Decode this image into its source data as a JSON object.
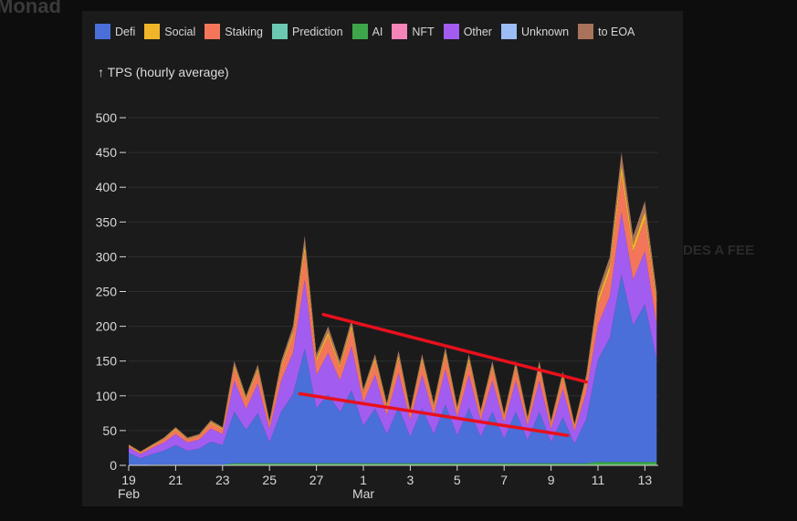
{
  "background": {
    "title": "Monad",
    "right_text": "DES A FEE"
  },
  "chart_data": {
    "type": "area",
    "stacked": true,
    "ylabel": "↑ TPS (hourly average)",
    "ylim": [
      0,
      500
    ],
    "yticks": [
      0,
      50,
      100,
      150,
      200,
      250,
      300,
      350,
      400,
      450,
      500
    ],
    "grid": "horizontal",
    "legend_position": "top",
    "xticks": [
      {
        "label": "19",
        "sub": "Feb",
        "date": "Feb 19"
      },
      {
        "label": "21",
        "date": "Feb 21"
      },
      {
        "label": "23",
        "date": "Feb 23"
      },
      {
        "label": "25",
        "date": "Feb 25"
      },
      {
        "label": "27",
        "date": "Feb 27"
      },
      {
        "label": "1",
        "sub": "Mar",
        "date": "Mar 1"
      },
      {
        "label": "3",
        "date": "Mar 3"
      },
      {
        "label": "5",
        "date": "Mar 5"
      },
      {
        "label": "7",
        "date": "Mar 7"
      },
      {
        "label": "9",
        "date": "Mar 9"
      },
      {
        "label": "11",
        "date": "Mar 11"
      },
      {
        "label": "13",
        "date": "Mar 13"
      }
    ],
    "legend": [
      {
        "name": "Defi",
        "color": "#4a6fd8"
      },
      {
        "name": "Social",
        "color": "#f0b429"
      },
      {
        "name": "Staking",
        "color": "#f4765a"
      },
      {
        "name": "Prediction",
        "color": "#6cc8b0"
      },
      {
        "name": "AI",
        "color": "#3da64a"
      },
      {
        "name": "NFT",
        "color": "#f784b8"
      },
      {
        "name": "Other",
        "color": "#a35cf0"
      },
      {
        "name": "Unknown",
        "color": "#9bbcf5"
      },
      {
        "name": "to EOA",
        "color": "#a8735a"
      }
    ],
    "x": [
      "Feb 19 00:00",
      "Feb 19 12:00",
      "Feb 20 00:00",
      "Feb 20 12:00",
      "Feb 21 00:00",
      "Feb 21 12:00",
      "Feb 22 00:00",
      "Feb 22 12:00",
      "Feb 23 00:00",
      "Feb 23 12:00",
      "Feb 24 00:00",
      "Feb 24 12:00",
      "Feb 25 00:00",
      "Feb 25 12:00",
      "Feb 26 00:00",
      "Feb 26 12:00",
      "Feb 27 00:00",
      "Feb 27 12:00",
      "Feb 28 00:00",
      "Feb 28 12:00",
      "Mar 1 00:00",
      "Mar 1 12:00",
      "Mar 2 00:00",
      "Mar 2 12:00",
      "Mar 3 00:00",
      "Mar 3 12:00",
      "Mar 4 00:00",
      "Mar 4 12:00",
      "Mar 5 00:00",
      "Mar 5 12:00",
      "Mar 6 00:00",
      "Mar 6 12:00",
      "Mar 7 00:00",
      "Mar 7 12:00",
      "Mar 8 00:00",
      "Mar 8 12:00",
      "Mar 9 00:00",
      "Mar 9 12:00",
      "Mar 10 00:00",
      "Mar 10 12:00",
      "Mar 11 00:00",
      "Mar 11 12:00",
      "Mar 12 00:00",
      "Mar 12 12:00",
      "Mar 13 00:00",
      "Mar 13 12:00"
    ],
    "series": [
      {
        "name": "AI",
        "color": "#3da64a",
        "values": [
          0,
          0,
          1,
          1,
          1,
          1,
          1,
          1,
          1,
          3,
          3,
          3,
          3,
          3,
          3,
          3,
          3,
          3,
          3,
          3,
          3,
          3,
          3,
          3,
          3,
          3,
          3,
          3,
          3,
          3,
          3,
          3,
          3,
          3,
          3,
          3,
          3,
          3,
          3,
          3,
          5,
          5,
          5,
          5,
          5,
          5
        ]
      },
      {
        "name": "Defi",
        "color": "#4a6fd8",
        "values": [
          18,
          10,
          15,
          20,
          28,
          20,
          23,
          33,
          28,
          74,
          48,
          72,
          30,
          74,
          99,
          165,
          79,
          99,
          74,
          105,
          54,
          79,
          42,
          80,
          38,
          79,
          42,
          84,
          40,
          79,
          38,
          74,
          35,
          74,
          33,
          74,
          30,
          66,
          28,
          63,
          147,
          178,
          269,
          196,
          227,
          147
        ]
      },
      {
        "name": "Other",
        "color": "#a35cf0",
        "values": [
          8,
          6,
          9,
          12,
          16,
          12,
          13,
          19,
          16,
          45,
          30,
          43,
          19,
          45,
          60,
          99,
          48,
          60,
          45,
          63,
          33,
          48,
          27,
          50,
          24,
          48,
          27,
          51,
          26,
          48,
          24,
          45,
          23,
          45,
          21,
          45,
          19,
          41,
          18,
          39,
          50,
          60,
          90,
          66,
          76,
          50
        ]
      },
      {
        "name": "Staking",
        "color": "#f4765a",
        "values": [
          2,
          2,
          3,
          4,
          6,
          4,
          5,
          7,
          6,
          18,
          12,
          17,
          8,
          18,
          24,
          40,
          19,
          24,
          18,
          25,
          13,
          19,
          11,
          20,
          10,
          19,
          11,
          20,
          10,
          19,
          10,
          18,
          9,
          18,
          8,
          18,
          8,
          16,
          7,
          16,
          30,
          36,
          54,
          40,
          46,
          30
        ]
      },
      {
        "name": "Social",
        "color": "#f0b429",
        "values": [
          1,
          1,
          1,
          1,
          2,
          1,
          1,
          2,
          2,
          4,
          3,
          4,
          2,
          4,
          6,
          10,
          5,
          6,
          4,
          6,
          3,
          5,
          3,
          5,
          2,
          5,
          3,
          5,
          3,
          5,
          2,
          4,
          2,
          4,
          2,
          4,
          2,
          4,
          2,
          4,
          8,
          9,
          14,
          10,
          11,
          8
        ]
      },
      {
        "name": "to EOA",
        "color": "#a8735a",
        "values": [
          1,
          1,
          1,
          2,
          2,
          2,
          2,
          3,
          2,
          6,
          4,
          6,
          3,
          6,
          8,
          13,
          6,
          8,
          6,
          8,
          4,
          6,
          4,
          7,
          3,
          6,
          4,
          7,
          3,
          6,
          3,
          6,
          3,
          6,
          3,
          6,
          3,
          5,
          2,
          5,
          10,
          12,
          18,
          13,
          15,
          10
        ]
      }
    ],
    "annotations": [
      {
        "type": "line",
        "color": "#e8101c",
        "from": {
          "x": "Feb 27 07:00",
          "y": 217
        },
        "to": {
          "x": "Mar 10 12:00",
          "y": 120
        }
      },
      {
        "type": "line",
        "color": "#e8101c",
        "from": {
          "x": "Feb 26 07:00",
          "y": 103
        },
        "to": {
          "x": "Mar 9 17:00",
          "y": 43
        }
      }
    ]
  }
}
